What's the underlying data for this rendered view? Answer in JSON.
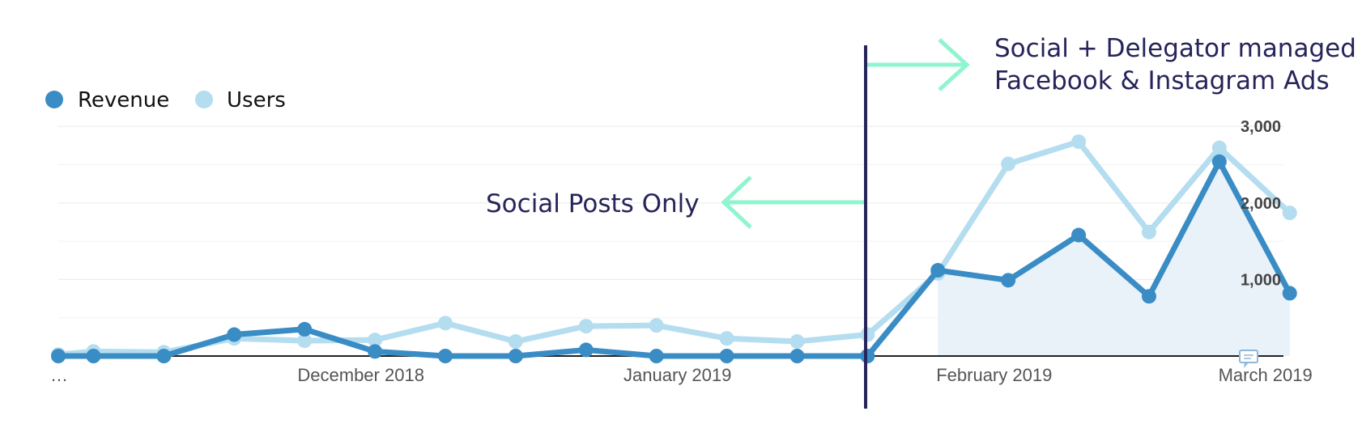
{
  "chart_data": {
    "type": "line",
    "title": "",
    "xlabel": "",
    "ylabel": "",
    "ylim": [
      0,
      3000
    ],
    "yticks": [
      1000,
      2000,
      3000
    ],
    "ytick_labels": [
      "1,000",
      "2,000",
      "3,000"
    ],
    "x": [
      0,
      0.5,
      1.5,
      2.5,
      3.5,
      4.5,
      5.5,
      6.5,
      7.5,
      8.5,
      9.5,
      10.5,
      11.5,
      12.5,
      13.5,
      14.5,
      15.5,
      16.5,
      17.5
    ],
    "xtick_positions": [
      0,
      4.3,
      8.8,
      13.3,
      17.5
    ],
    "xtick_labels": [
      "…",
      "December 2018",
      "January 2019",
      "February 2019",
      "March 2019"
    ],
    "series": [
      {
        "name": "Revenue",
        "color": "#3a8cc5",
        "values": [
          0,
          0,
          0,
          280,
          350,
          60,
          0,
          0,
          80,
          0,
          0,
          0,
          0,
          1120,
          990,
          1580,
          780,
          2540,
          820
        ]
      },
      {
        "name": "Users",
        "color": "#b4ddf0",
        "values": [
          20,
          60,
          50,
          230,
          200,
          210,
          430,
          190,
          390,
          400,
          230,
          190,
          280,
          1080,
          2510,
          2800,
          1620,
          2720,
          1870
        ]
      }
    ],
    "annotations": [
      {
        "lines": [
          "Social Posts Only"
        ],
        "arrow": "left"
      },
      {
        "lines": [
          "Social + Delegator managed",
          "Facebook & Instagram Ads"
        ],
        "arrow": "right"
      }
    ],
    "divider_at_x": 12.5,
    "legend_position": "top-left"
  },
  "colors": {
    "revenue": "#3a8cc5",
    "users": "#b4ddf0",
    "area_fill": "#e9f1f9",
    "divider": "#26245a",
    "arrow": "#8ff5cf",
    "annotation_text": "#26245a"
  },
  "icons": {
    "corner": "comment-icon"
  }
}
